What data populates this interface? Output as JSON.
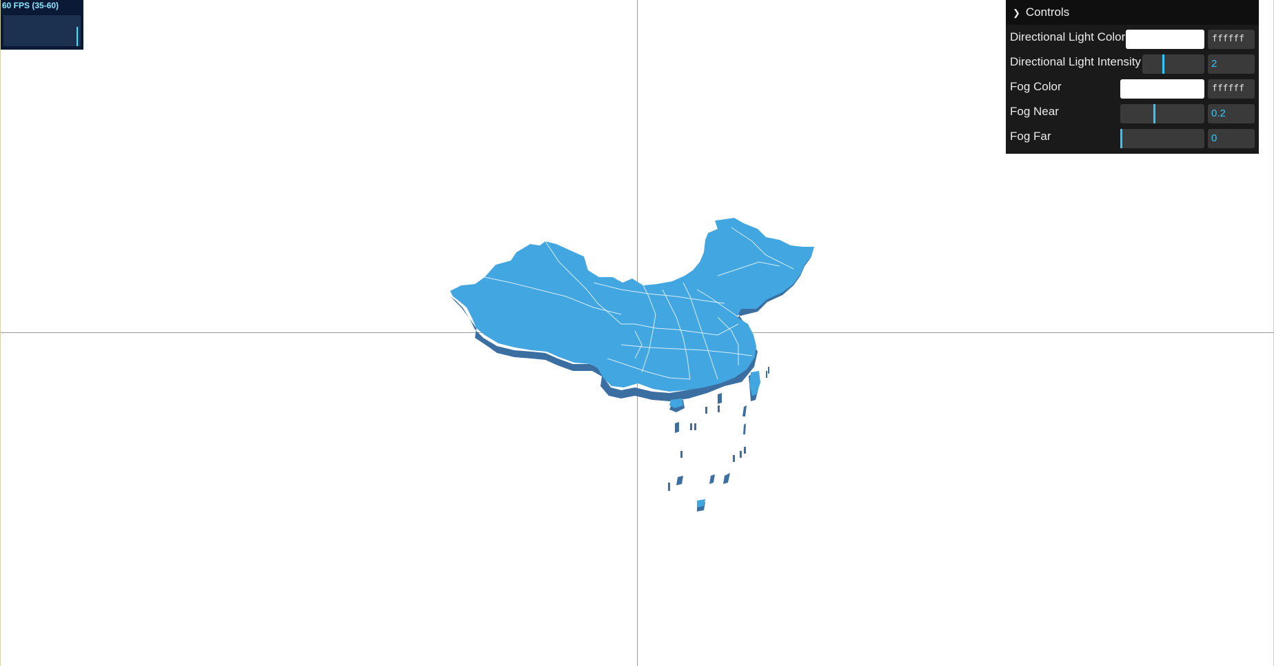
{
  "fps": {
    "label": "60 FPS (35-60)"
  },
  "gui": {
    "title": "Controls",
    "rows": [
      {
        "label": "Directional Light Color",
        "type": "color",
        "value": "ffffff",
        "color": "#ffffff"
      },
      {
        "label": "Directional Light Intensity",
        "type": "number",
        "value": "2",
        "fraction": 0.33
      },
      {
        "label": "Fog Color",
        "type": "color",
        "value": "ffffff",
        "color": "#ffffff"
      },
      {
        "label": "Fog Near",
        "type": "number",
        "value": "0.2",
        "fraction": 0.4
      },
      {
        "label": "Fog Far",
        "type": "number",
        "value": "0",
        "fraction": 0.0
      }
    ]
  },
  "map": {
    "fill_color": "#42a6e0",
    "side_color": "#3b6ea1",
    "border_color": "#d9eefa"
  },
  "axes": {
    "color": "#9a9a9a"
  }
}
